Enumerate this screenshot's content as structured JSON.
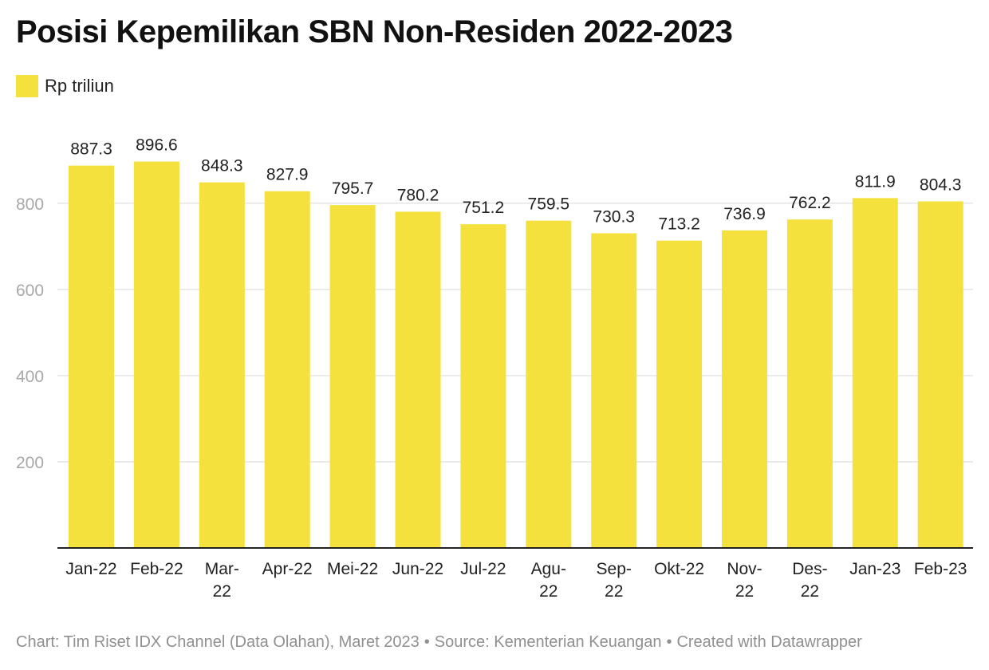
{
  "title": "Posisi Kepemilikan SBN Non-Residen 2022-2023",
  "legend": {
    "label": "Rp triliun"
  },
  "colors": {
    "bar": "#f5e13d",
    "grid": "#e4e4e4",
    "axis": "#222222",
    "tick": "#a8a8a8",
    "label": "#222222"
  },
  "chart_data": {
    "type": "bar",
    "categories": [
      "Jan-22",
      "Feb-22",
      "Mar-22",
      "Apr-22",
      "Mei-22",
      "Jun-22",
      "Jul-22",
      "Agu-22",
      "Sep-22",
      "Okt-22",
      "Nov-22",
      "Des-22",
      "Jan-23",
      "Feb-23"
    ],
    "category_display": [
      [
        "Jan-22"
      ],
      [
        "Feb-22"
      ],
      [
        "Mar-",
        "22"
      ],
      [
        "Apr-22"
      ],
      [
        "Mei-22"
      ],
      [
        "Jun-22"
      ],
      [
        "Jul-22"
      ],
      [
        "Agu-",
        "22"
      ],
      [
        "Sep-",
        "22"
      ],
      [
        "Okt-22"
      ],
      [
        "Nov-",
        "22"
      ],
      [
        "Des-",
        "22"
      ],
      [
        "Jan-23"
      ],
      [
        "Feb-23"
      ]
    ],
    "series": [
      {
        "name": "Rp triliun",
        "values": [
          887.3,
          896.6,
          848.3,
          827.9,
          795.7,
          780.2,
          751.2,
          759.5,
          730.3,
          713.2,
          736.9,
          762.2,
          811.9,
          804.3
        ]
      }
    ],
    "data_labels": [
      "887.3",
      "896.6",
      "848.3",
      "827.9",
      "795.7",
      "780.2",
      "751.2",
      "759.5",
      "730.3",
      "713.2",
      "736.9",
      "762.2",
      "811.9",
      "804.3"
    ],
    "yticks": [
      200,
      400,
      600,
      800
    ],
    "ytick_labels": [
      "200",
      "400",
      "600",
      "800"
    ],
    "ylim": [
      0,
      900
    ],
    "grid": true,
    "legend_position": "top-left"
  },
  "footer": {
    "chart_credit": "Chart: Tim Riset IDX Channel (Data Olahan), Maret 2023",
    "separator": "•",
    "source": "Source: Kementerian Keuangan",
    "created_with": "Created with Datawrapper"
  }
}
